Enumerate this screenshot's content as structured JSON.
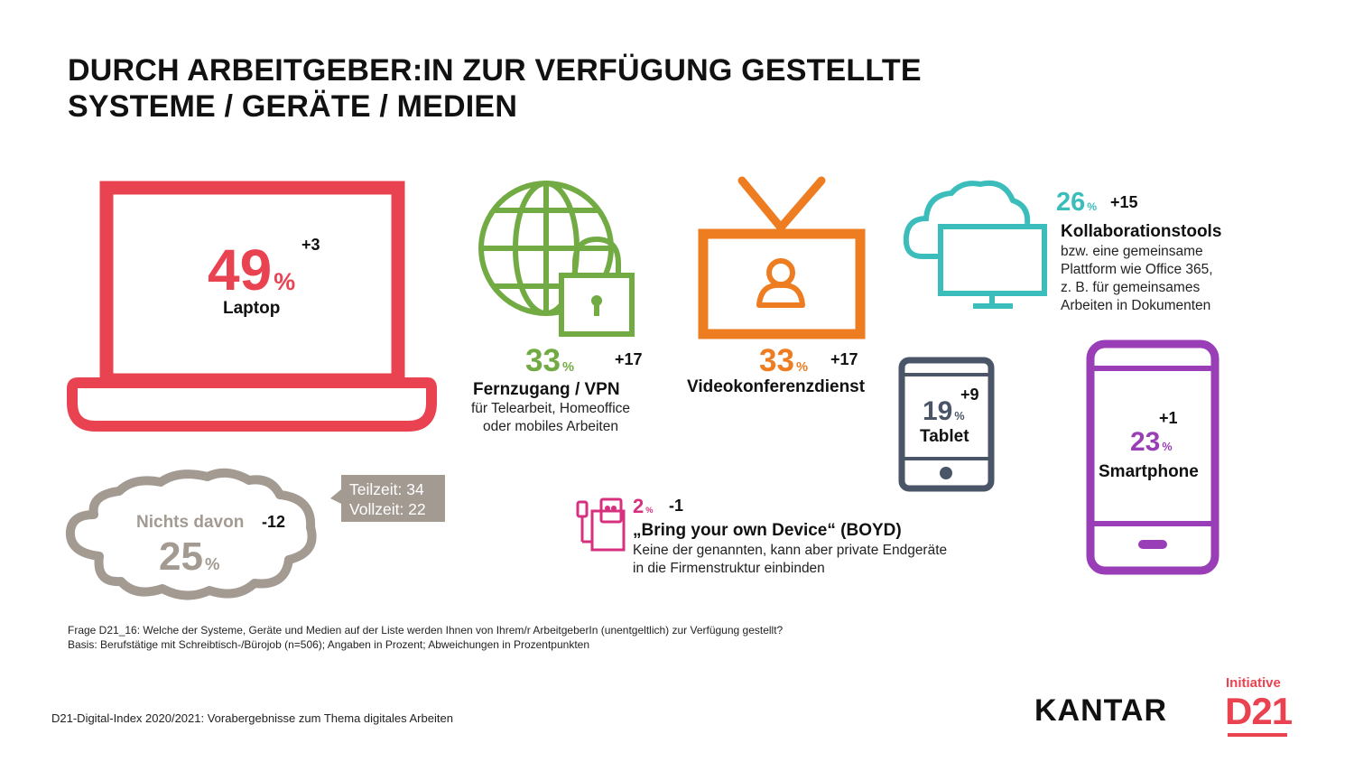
{
  "title_line1": "DURCH ARBEITGEBER:IN ZUR VERFÜGUNG GESTELLTE",
  "title_line2": "SYSTEME / GERÄTE / MEDIEN",
  "colors": {
    "laptop": "#e94351",
    "vpn": "#72ab43",
    "video": "#ee7d22",
    "collab": "#3bbdbb",
    "tablet": "#4a5568",
    "smartphone": "#9a3eb7",
    "byod": "#d6307f",
    "nichts": "#a39a92"
  },
  "chart_data": {
    "type": "table",
    "unit": "%",
    "items": [
      {
        "label": "Laptop",
        "value": 49,
        "delta": "+3",
        "icon": "laptop-icon"
      },
      {
        "label": "Fernzugang / VPN",
        "value": 33,
        "delta": "+17",
        "desc": [
          "für Telearbeit, Homeoffice",
          "oder mobiles Arbeiten"
        ],
        "icon": "globe-lock-icon"
      },
      {
        "label": "Videokonferenzdienst",
        "value": 33,
        "delta": "+17",
        "icon": "video-screen-icon"
      },
      {
        "label": "Kollaborationstools",
        "value": 26,
        "delta": "+15",
        "desc": [
          "bzw. eine gemeinsame",
          "Plattform wie Office 365,",
          "z. B. für gemeinsames",
          "Arbeiten in Dokumenten"
        ],
        "icon": "cloud-monitor-icon"
      },
      {
        "label": "Tablet",
        "value": 19,
        "delta": "+9",
        "icon": "tablet-icon"
      },
      {
        "label": "Smartphone",
        "value": 23,
        "delta": "+1",
        "icon": "smartphone-icon"
      },
      {
        "label": "„Bring your own Device“ (BOYD)",
        "value": 2,
        "delta": "-1",
        "desc": [
          "Keine der genannten, kann aber private Endgeräte",
          "in die Firmenstruktur einbinden"
        ],
        "icon": "devices-icon"
      },
      {
        "label": "Nichts davon",
        "value": 25,
        "delta": "-12",
        "icon": "cloud-icon",
        "callout": [
          "Teilzeit: 34",
          "Vollzeit: 22"
        ]
      }
    ]
  },
  "footnote_line1": "Frage D21_16: Welche der Systeme, Geräte und Medien auf der Liste werden Ihnen von Ihrem/r ArbeitgeberIn (unentgeltlich) zur Verfügung gestellt?",
  "footnote_line2": "Basis: Berufstätige mit Schreibtisch-/Bürojob (n=506); Angaben in Prozent; Abweichungen in Prozentpunkten",
  "footer": "D21-Digital-Index 2020/2021: Vorabergebnisse zum Thema digitales Arbeiten",
  "logo_kantar": "KANTAR",
  "logo_d21_top": "Initiative",
  "logo_d21": "D21"
}
